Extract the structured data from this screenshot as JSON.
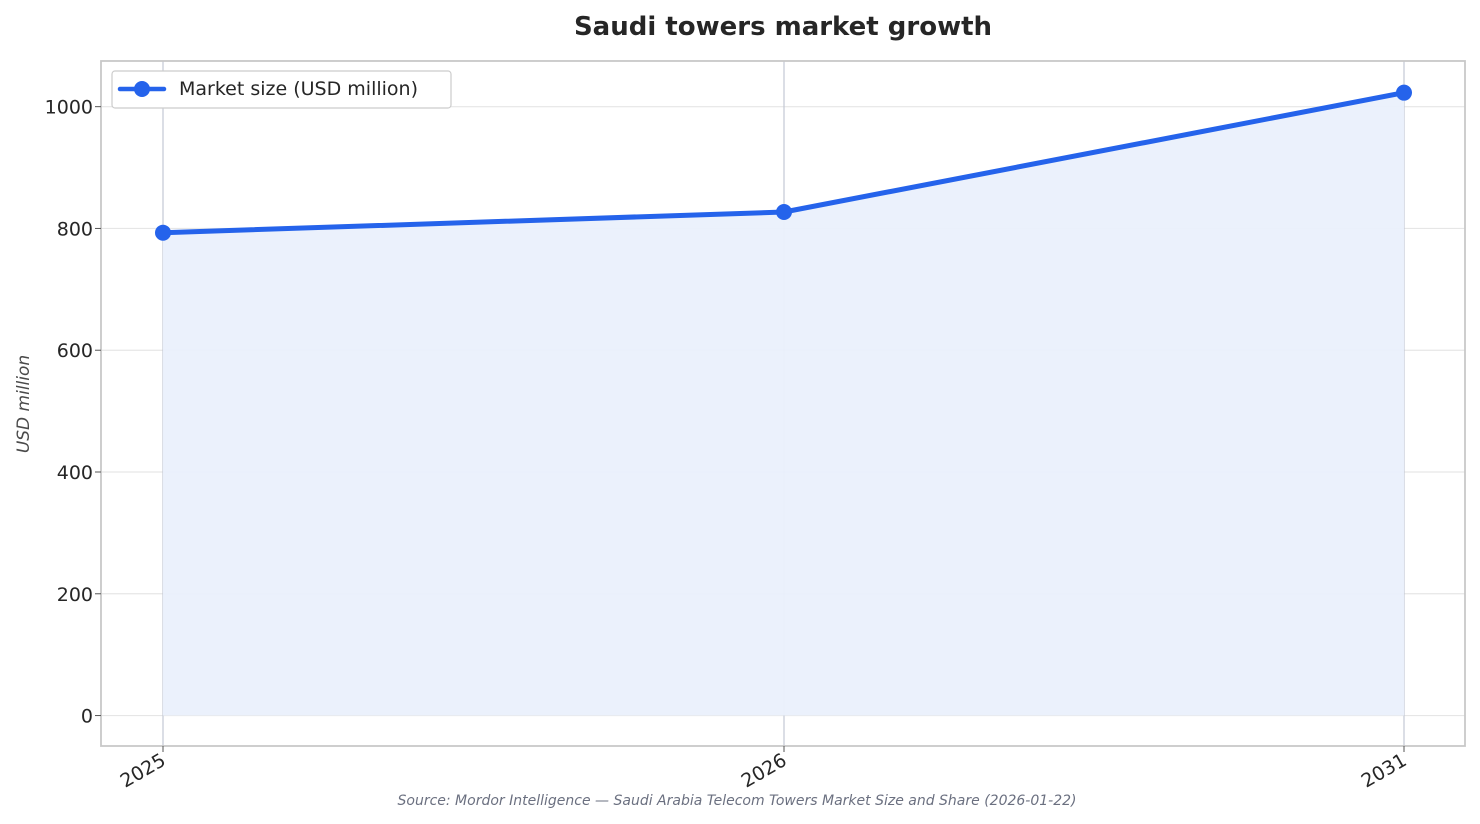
{
  "chart_data": {
    "type": "line",
    "title": "Saudi towers market growth",
    "ylabel": "USD million",
    "xlabel": "",
    "categories": [
      "2025",
      "2026",
      "2031"
    ],
    "series": [
      {
        "name": "Market size (USD million)",
        "values": [
          793,
          827,
          1023
        ]
      }
    ],
    "yticks": [
      "0",
      "200",
      "400",
      "600",
      "800",
      "1000"
    ],
    "ylim": [
      -50,
      1075
    ],
    "area_fill": true,
    "grid": true,
    "legend_position": "top-left",
    "source": "Source: Mordor Intelligence — Saudi Arabia Telecom Towers Market Size and Share (2026-01-22)",
    "colors": {
      "line": "#2563eb",
      "fill": "#eaf0fc",
      "grid": "#e6e6e6",
      "vertical_grid": "#c3c8d4",
      "frame": "#c8c8c8"
    }
  }
}
